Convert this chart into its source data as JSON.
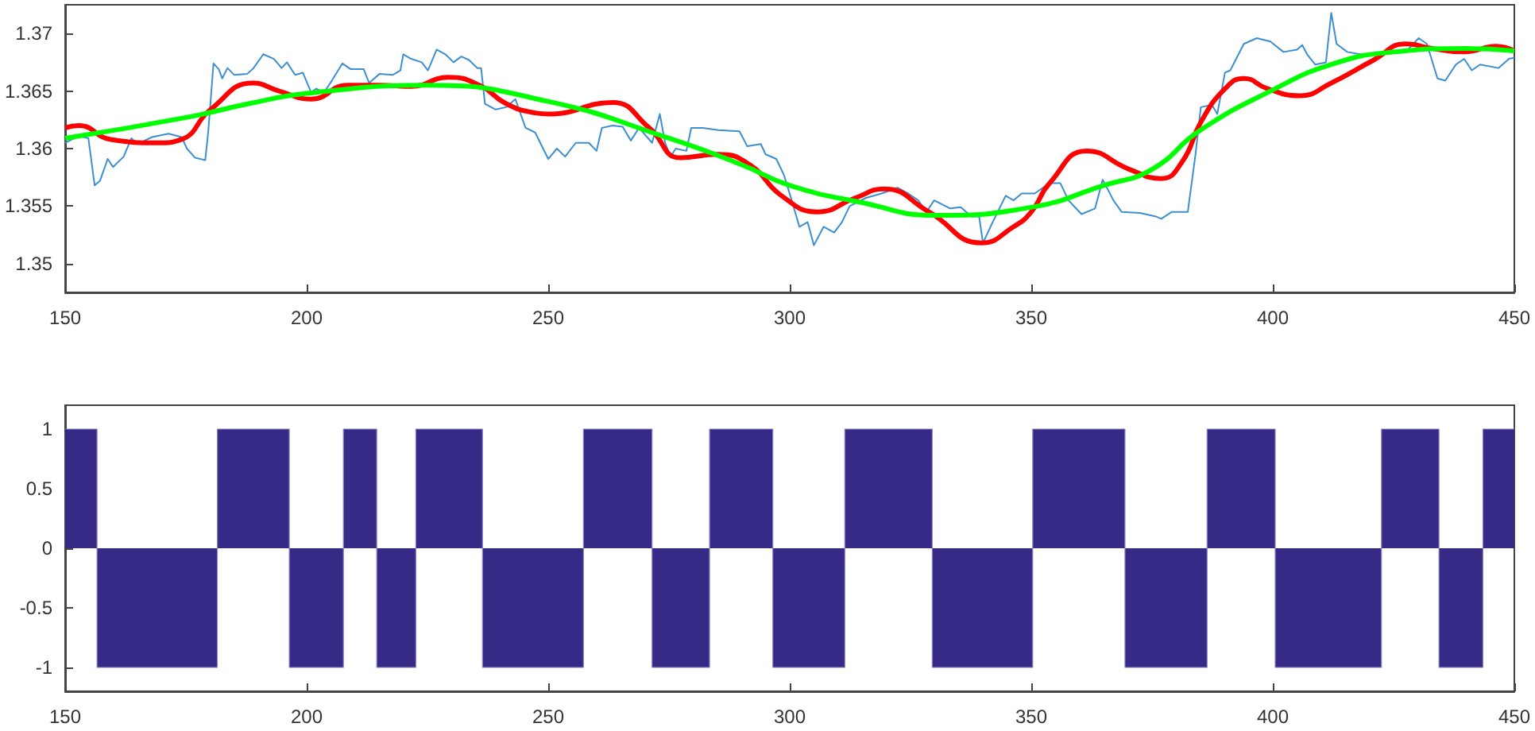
{
  "chart_data": [
    {
      "type": "line",
      "marker": "none",
      "xlim": [
        150,
        450
      ],
      "xticks": [
        150,
        200,
        250,
        300,
        350,
        400,
        450
      ],
      "ylim": [
        1.3475,
        1.3725
      ],
      "yticks": [
        1.35,
        1.355,
        1.36,
        1.365,
        1.37
      ],
      "grid": false,
      "series": [
        {
          "color": "#3d8fd1",
          "x": [
            150,
            152.8,
            154.8,
            156.1,
            157.2,
            158.8,
            159.9,
            162.1,
            163.7,
            165,
            168,
            171.4,
            174.1,
            175.2,
            176.9,
            179,
            179.6,
            180.7,
            181.8,
            182.5,
            183.6,
            185,
            187.7,
            189,
            191,
            193.2,
            194.8,
            195.9,
            197.6,
            199.2,
            200.9,
            202,
            203.6,
            205.2,
            207.4,
            209.1,
            211.8,
            212.9,
            215.1,
            217.8,
            219.4,
            220,
            221.6,
            223.8,
            225.1,
            226.9,
            228.7,
            230.4,
            232,
            233.6,
            235.3,
            236.1,
            236.9,
            239.1,
            241.3,
            243.2,
            245.3,
            247.3,
            250,
            251.8,
            253.5,
            255.7,
            258.4,
            260,
            261.1,
            263.3,
            265.4,
            267.1,
            268.8,
            271.5,
            273.1,
            274.2,
            275.3,
            276.4,
            278.6,
            279.6,
            282,
            285.2,
            289.6,
            291.2,
            294,
            295,
            297.2,
            298.8,
            300.4,
            302,
            303.7,
            305,
            307,
            309.2,
            310.8,
            312.4,
            315.7,
            319,
            322.3,
            324.5,
            326.6,
            328.3,
            329.9,
            333.2,
            335.4,
            337.6,
            339.2,
            340,
            342,
            344.7,
            346.3,
            348,
            350.7,
            353.8,
            356,
            357.7,
            360.4,
            363.2,
            364.8,
            367,
            368.7,
            372.5,
            375.8,
            376.9,
            379.1,
            382.4,
            384,
            385.1,
            387.4,
            388.5,
            390.1,
            391.2,
            394,
            396.7,
            399.5,
            402.2,
            405,
            406.1,
            407.1,
            408.8,
            411,
            412.1,
            413.2,
            415.4,
            418.1,
            423.1,
            427.5,
            430.2,
            431.9,
            434.1,
            435.7,
            437.9,
            439.6,
            441.2,
            442.9,
            446.7,
            448.9,
            450
          ],
          "values": [
            1.3605,
            1.3611,
            1.3609,
            1.3568,
            1.3572,
            1.3591,
            1.3584,
            1.3593,
            1.3609,
            1.3604,
            1.361,
            1.3613,
            1.361,
            1.36,
            1.3592,
            1.359,
            1.3614,
            1.3674,
            1.3669,
            1.3661,
            1.367,
            1.3664,
            1.3665,
            1.367,
            1.3682,
            1.3678,
            1.367,
            1.3675,
            1.3664,
            1.3666,
            1.3649,
            1.3652,
            1.3649,
            1.3659,
            1.3674,
            1.3669,
            1.3669,
            1.3657,
            1.3665,
            1.3664,
            1.3668,
            1.3682,
            1.3678,
            1.3675,
            1.3668,
            1.3686,
            1.3682,
            1.3675,
            1.368,
            1.3677,
            1.367,
            1.367,
            1.3639,
            1.3634,
            1.3636,
            1.3643,
            1.3618,
            1.3614,
            1.3591,
            1.36,
            1.3593,
            1.3605,
            1.3605,
            1.3598,
            1.3618,
            1.362,
            1.3619,
            1.3607,
            1.3618,
            1.3605,
            1.363,
            1.3605,
            1.3593,
            1.36,
            1.3598,
            1.3618,
            1.3618,
            1.3616,
            1.3615,
            1.3602,
            1.3604,
            1.3595,
            1.3591,
            1.3577,
            1.3555,
            1.3532,
            1.3536,
            1.3516,
            1.3532,
            1.3527,
            1.3536,
            1.355,
            1.3557,
            1.3561,
            1.3566,
            1.3561,
            1.3555,
            1.3545,
            1.3555,
            1.3548,
            1.3549,
            1.3541,
            1.3541,
            1.3518,
            1.3536,
            1.3559,
            1.3555,
            1.3561,
            1.3561,
            1.357,
            1.357,
            1.3555,
            1.3543,
            1.3548,
            1.3573,
            1.3555,
            1.3545,
            1.3544,
            1.3541,
            1.3539,
            1.3545,
            1.3545,
            1.3595,
            1.3636,
            1.3638,
            1.363,
            1.3666,
            1.3668,
            1.3691,
            1.3696,
            1.3693,
            1.3684,
            1.3686,
            1.369,
            1.3682,
            1.3673,
            1.3675,
            1.3718,
            1.3691,
            1.3684,
            1.3682,
            1.3682,
            1.3684,
            1.3696,
            1.3691,
            1.3661,
            1.3659,
            1.3673,
            1.3678,
            1.3668,
            1.3673,
            1.367,
            1.3678,
            1.3679
          ]
        },
        {
          "color": "#ff0000",
          "x": [
            150,
            152.8,
            159.4,
            169.2,
            174.1,
            180.1,
            188.9,
            194.3,
            200.9,
            208.5,
            215.1,
            221.6,
            229.3,
            235.8,
            241.3,
            247.3,
            250,
            263.3,
            270.9,
            277.4,
            285.1,
            291.7,
            298.3,
            305.7,
            313.5,
            319.5,
            328.8,
            339.7,
            346.3,
            350,
            353.8,
            361.5,
            370.3,
            376.9,
            381.3,
            385.1,
            390.1,
            394,
            398.9,
            405.5,
            412.1,
            420.9,
            427.5,
            433,
            439.6,
            446.2,
            450
          ],
          "values": [
            1.3618,
            1.362,
            1.3608,
            1.3605,
            1.3608,
            1.3634,
            1.3657,
            1.365,
            1.3643,
            1.3655,
            1.3655,
            1.3654,
            1.3662,
            1.3655,
            1.3639,
            1.3631,
            1.363,
            1.364,
            1.3618,
            1.3592,
            1.3595,
            1.3586,
            1.3559,
            1.3545,
            1.3557,
            1.3565,
            1.3545,
            1.3518,
            1.3532,
            1.3545,
            1.357,
            1.3598,
            1.3582,
            1.3574,
            1.3589,
            1.3623,
            1.3652,
            1.3661,
            1.3652,
            1.3646,
            1.3657,
            1.3677,
            1.3691,
            1.3687,
            1.3684,
            1.3689,
            1.3685
          ]
        },
        {
          "color": "#00ff00",
          "x": [
            150,
            175,
            188,
            200,
            225,
            250,
            275,
            290,
            300,
            315,
            330,
            350,
            365,
            375,
            385,
            400,
            412,
            425,
            440,
            450
          ],
          "values": [
            1.3609,
            1.3627,
            1.3639,
            1.3648,
            1.3655,
            1.3641,
            1.3609,
            1.3586,
            1.3568,
            1.3553,
            1.3542,
            1.3549,
            1.3568,
            1.3582,
            1.3616,
            1.3651,
            1.3673,
            1.3684,
            1.3687,
            1.3685
          ]
        }
      ]
    },
    {
      "type": "area",
      "marker": "none",
      "xlim": [
        150,
        450
      ],
      "xticks": [
        150,
        200,
        250,
        300,
        350,
        400,
        450
      ],
      "ylim": [
        -1.2,
        1.2
      ],
      "yticks": [
        -1,
        -0.5,
        0,
        0.5,
        1
      ],
      "grid": false,
      "series": [
        {
          "color": "#352a86",
          "x": [
            150,
            156.6,
            156.6,
            181.5,
            181.5,
            196.4,
            196.4,
            207.6,
            207.6,
            214.5,
            214.5,
            222.6,
            222.6,
            236.4,
            236.4,
            257.3,
            257.3,
            271.5,
            271.5,
            283.4,
            283.4,
            296.5,
            296.5,
            311.4,
            311.4,
            329.5,
            329.5,
            350.3,
            350.3,
            369.4,
            369.4,
            386.4,
            386.4,
            400.5,
            400.5,
            422.5,
            422.5,
            434.4,
            434.4,
            443.5,
            443.5,
            450
          ],
          "values": [
            1,
            1,
            -1,
            -1,
            1,
            1,
            -1,
            -1,
            1,
            1,
            -1,
            -1,
            1,
            1,
            -1,
            -1,
            1,
            1,
            -1,
            -1,
            1,
            1,
            -1,
            -1,
            1,
            1,
            -1,
            -1,
            1,
            1,
            -1,
            -1,
            1,
            1,
            -1,
            -1,
            1,
            1,
            -1,
            -1,
            1,
            1
          ]
        }
      ]
    }
  ]
}
